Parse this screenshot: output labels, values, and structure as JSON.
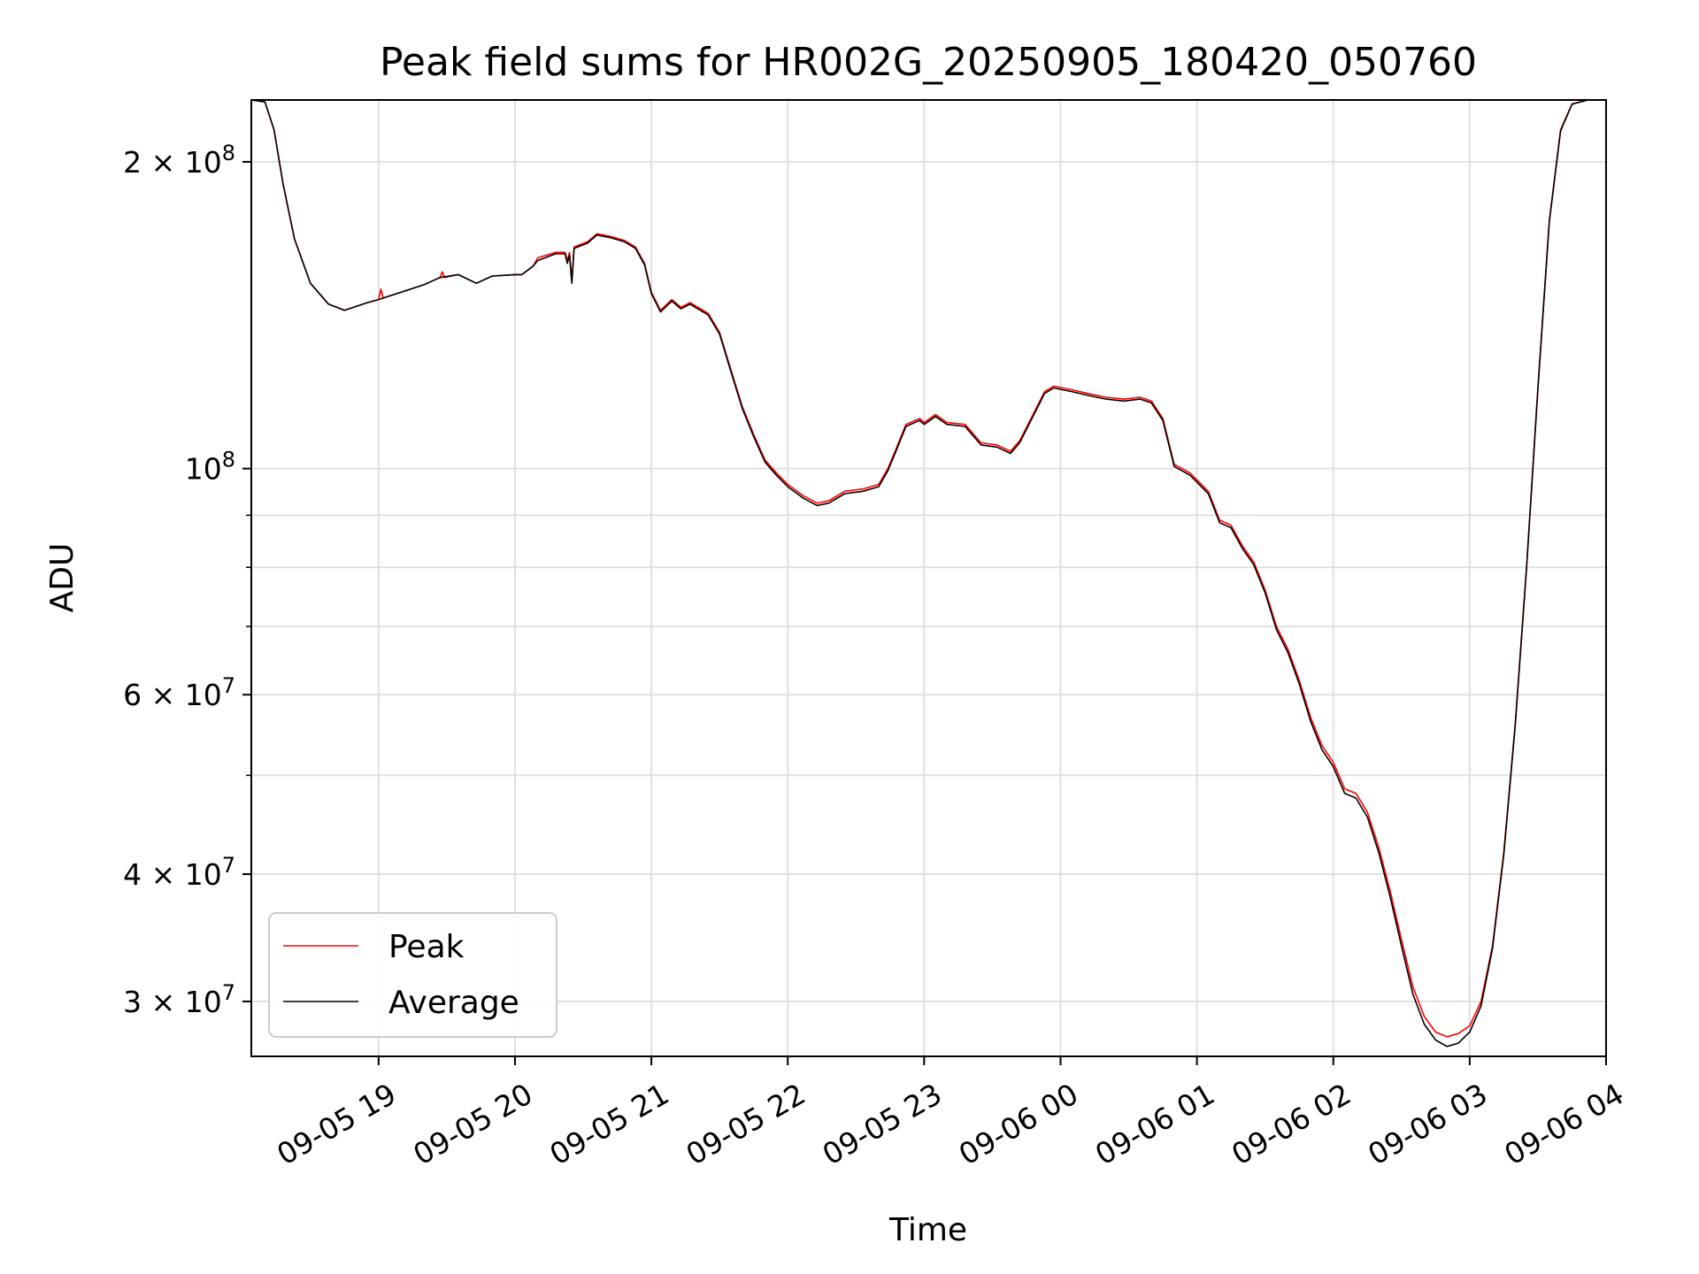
{
  "chart_data": {
    "type": "line",
    "title": "Peak field sums for HR002G_20250905_180420_050760",
    "xlabel": "Time",
    "ylabel": "ADU",
    "yscale": "log",
    "ylim": [
      26500000,
      230000000
    ],
    "xlim": [
      "2025-09-05 18:04",
      "2025-09-06 04:00"
    ],
    "grid": true,
    "legend_position": "lower-left",
    "x_ticks": [
      {
        "t": "2025-09-05 19:00",
        "label": "09-05 19"
      },
      {
        "t": "2025-09-05 20:00",
        "label": "09-05 20"
      },
      {
        "t": "2025-09-05 21:00",
        "label": "09-05 21"
      },
      {
        "t": "2025-09-05 22:00",
        "label": "09-05 22"
      },
      {
        "t": "2025-09-05 23:00",
        "label": "09-05 23"
      },
      {
        "t": "2025-09-06 00:00",
        "label": "09-06 00"
      },
      {
        "t": "2025-09-06 01:00",
        "label": "09-06 01"
      },
      {
        "t": "2025-09-06 02:00",
        "label": "09-06 02"
      },
      {
        "t": "2025-09-06 03:00",
        "label": "09-06 03"
      },
      {
        "t": "2025-09-06 04:00",
        "label": "09-06 04"
      }
    ],
    "y_major_ticks": [
      {
        "value": 30000000,
        "base": "3 × 10",
        "exp": "7"
      },
      {
        "value": 40000000,
        "base": "4 × 10",
        "exp": "7"
      },
      {
        "value": 60000000,
        "base": "6 × 10",
        "exp": "7"
      },
      {
        "value": 100000000,
        "base": "10",
        "exp": "8"
      },
      {
        "value": 200000000,
        "base": "2 × 10",
        "exp": "8"
      }
    ],
    "y_minor_ticks": [
      50000000,
      70000000,
      80000000,
      90000000
    ],
    "series": [
      {
        "name": "Peak",
        "color": "#ff0000",
        "points": [
          [
            "2025-09-05 18:04",
            230000000
          ],
          [
            "2025-09-05 18:10",
            229000000
          ],
          [
            "2025-09-05 18:14",
            215000000
          ],
          [
            "2025-09-05 18:18",
            190000000
          ],
          [
            "2025-09-05 18:23",
            168000000
          ],
          [
            "2025-09-05 18:30",
            152000000
          ],
          [
            "2025-09-05 18:38",
            145000000
          ],
          [
            "2025-09-05 18:45",
            143000000
          ],
          [
            "2025-09-05 18:55",
            145500000
          ],
          [
            "2025-09-05 19:00",
            146500000
          ],
          [
            "2025-09-05 19:01",
            150000000
          ],
          [
            "2025-09-05 19:02",
            147000000
          ],
          [
            "2025-09-05 19:06",
            148000000
          ],
          [
            "2025-09-05 19:10",
            149000000
          ],
          [
            "2025-09-05 19:20",
            151500000
          ],
          [
            "2025-09-05 19:27",
            154000000
          ],
          [
            "2025-09-05 19:28",
            156000000
          ],
          [
            "2025-09-05 19:29",
            154000000
          ],
          [
            "2025-09-05 19:35",
            155000000
          ],
          [
            "2025-09-05 19:43",
            152000000
          ],
          [
            "2025-09-05 19:50",
            154500000
          ],
          [
            "2025-09-05 20:00",
            155000000
          ],
          [
            "2025-09-05 20:03",
            155000000
          ],
          [
            "2025-09-05 20:08",
            158000000
          ],
          [
            "2025-09-05 20:10",
            161000000
          ],
          [
            "2025-09-05 20:18",
            163000000
          ],
          [
            "2025-09-05 20:22",
            163000000
          ],
          [
            "2025-09-05 20:23",
            160000000
          ],
          [
            "2025-09-05 20:24",
            163000000
          ],
          [
            "2025-09-05 20:25",
            153000000
          ],
          [
            "2025-09-05 20:26",
            165000000
          ],
          [
            "2025-09-05 20:32",
            167000000
          ],
          [
            "2025-09-05 20:36",
            170000000
          ],
          [
            "2025-09-05 20:42",
            169000000
          ],
          [
            "2025-09-05 20:48",
            167500000
          ],
          [
            "2025-09-05 20:53",
            165000000
          ],
          [
            "2025-09-05 20:57",
            159000000
          ],
          [
            "2025-09-05 21:00",
            149000000
          ],
          [
            "2025-09-05 21:04",
            143000000
          ],
          [
            "2025-09-05 21:09",
            146500000
          ],
          [
            "2025-09-05 21:13",
            144000000
          ],
          [
            "2025-09-05 21:17",
            145500000
          ],
          [
            "2025-09-05 21:25",
            142000000
          ],
          [
            "2025-09-05 21:30",
            136000000
          ],
          [
            "2025-09-05 21:35",
            125000000
          ],
          [
            "2025-09-05 21:40",
            115000000
          ],
          [
            "2025-09-05 21:45",
            108000000
          ],
          [
            "2025-09-05 21:50",
            102000000
          ],
          [
            "2025-09-05 21:55",
            99000000
          ],
          [
            "2025-09-05 22:00",
            96500000
          ],
          [
            "2025-09-05 22:07",
            94000000
          ],
          [
            "2025-09-05 22:13",
            92500000
          ],
          [
            "2025-09-05 22:18",
            93000000
          ],
          [
            "2025-09-05 22:25",
            95000000
          ],
          [
            "2025-09-05 22:33",
            95500000
          ],
          [
            "2025-09-05 22:40",
            96500000
          ],
          [
            "2025-09-05 22:44",
            100000000
          ],
          [
            "2025-09-05 22:48",
            105000000
          ],
          [
            "2025-09-05 22:52",
            110500000
          ],
          [
            "2025-09-05 22:58",
            112000000
          ],
          [
            "2025-09-05 23:00",
            111000000
          ],
          [
            "2025-09-05 23:05",
            113000000
          ],
          [
            "2025-09-05 23:10",
            111000000
          ],
          [
            "2025-09-05 23:18",
            110500000
          ],
          [
            "2025-09-05 23:25",
            106000000
          ],
          [
            "2025-09-05 23:32",
            105500000
          ],
          [
            "2025-09-05 23:38",
            104000000
          ],
          [
            "2025-09-05 23:42",
            106500000
          ],
          [
            "2025-09-05 23:47",
            112000000
          ],
          [
            "2025-09-05 23:53",
            119000000
          ],
          [
            "2025-09-05 23:57",
            120500000
          ],
          [
            "2025-09-06 00:05",
            119500000
          ],
          [
            "2025-09-06 00:12",
            118500000
          ],
          [
            "2025-09-06 00:20",
            117500000
          ],
          [
            "2025-09-06 00:28",
            117000000
          ],
          [
            "2025-09-06 00:35",
            117500000
          ],
          [
            "2025-09-06 00:40",
            116500000
          ],
          [
            "2025-09-06 00:45",
            112000000
          ],
          [
            "2025-09-06 00:50",
            101000000
          ],
          [
            "2025-09-06 00:57",
            99000000
          ],
          [
            "2025-09-06 01:05",
            95000000
          ],
          [
            "2025-09-06 01:10",
            89000000
          ],
          [
            "2025-09-06 01:15",
            88000000
          ],
          [
            "2025-09-06 01:20",
            84000000
          ],
          [
            "2025-09-06 01:25",
            81000000
          ],
          [
            "2025-09-06 01:30",
            76000000
          ],
          [
            "2025-09-06 01:35",
            70000000
          ],
          [
            "2025-09-06 01:40",
            66500000
          ],
          [
            "2025-09-06 01:45",
            62000000
          ],
          [
            "2025-09-06 01:50",
            57000000
          ],
          [
            "2025-09-06 01:55",
            53500000
          ],
          [
            "2025-09-06 02:00",
            51500000
          ],
          [
            "2025-09-06 02:05",
            48500000
          ],
          [
            "2025-09-06 02:10",
            48000000
          ],
          [
            "2025-09-06 02:15",
            46000000
          ],
          [
            "2025-09-06 02:20",
            42500000
          ],
          [
            "2025-09-06 02:25",
            38500000
          ],
          [
            "2025-09-06 02:30",
            34500000
          ],
          [
            "2025-09-06 02:35",
            31000000
          ],
          [
            "2025-09-06 02:40",
            29000000
          ],
          [
            "2025-09-06 02:45",
            28000000
          ],
          [
            "2025-09-06 02:50",
            27700000
          ],
          [
            "2025-09-06 02:55",
            27900000
          ],
          [
            "2025-09-06 03:00",
            28400000
          ],
          [
            "2025-09-06 03:05",
            30000000
          ],
          [
            "2025-09-06 03:10",
            34000000
          ],
          [
            "2025-09-06 03:15",
            42000000
          ],
          [
            "2025-09-06 03:20",
            56000000
          ],
          [
            "2025-09-06 03:25",
            80000000
          ],
          [
            "2025-09-06 03:30",
            120000000
          ],
          [
            "2025-09-06 03:35",
            175000000
          ],
          [
            "2025-09-06 03:40",
            215000000
          ],
          [
            "2025-09-06 03:45",
            228000000
          ],
          [
            "2025-09-06 03:52",
            230000000
          ],
          [
            "2025-09-06 04:00",
            230000000
          ]
        ]
      },
      {
        "name": "Average",
        "color": "#000000",
        "points": [
          [
            "2025-09-05 18:04",
            230000000
          ],
          [
            "2025-09-05 18:10",
            229000000
          ],
          [
            "2025-09-05 18:14",
            215000000
          ],
          [
            "2025-09-05 18:18",
            190000000
          ],
          [
            "2025-09-05 18:23",
            168000000
          ],
          [
            "2025-09-05 18:30",
            152000000
          ],
          [
            "2025-09-05 18:38",
            145000000
          ],
          [
            "2025-09-05 18:45",
            143000000
          ],
          [
            "2025-09-05 18:55",
            145500000
          ],
          [
            "2025-09-05 19:00",
            146500000
          ],
          [
            "2025-09-05 19:06",
            148000000
          ],
          [
            "2025-09-05 19:10",
            149000000
          ],
          [
            "2025-09-05 19:20",
            151500000
          ],
          [
            "2025-09-05 19:27",
            154000000
          ],
          [
            "2025-09-05 19:35",
            155000000
          ],
          [
            "2025-09-05 19:43",
            152000000
          ],
          [
            "2025-09-05 19:50",
            154500000
          ],
          [
            "2025-09-05 20:00",
            155000000
          ],
          [
            "2025-09-05 20:03",
            155000000
          ],
          [
            "2025-09-05 20:08",
            158000000
          ],
          [
            "2025-09-05 20:10",
            160000000
          ],
          [
            "2025-09-05 20:18",
            162500000
          ],
          [
            "2025-09-05 20:22",
            162500000
          ],
          [
            "2025-09-05 20:23",
            159000000
          ],
          [
            "2025-09-05 20:24",
            162000000
          ],
          [
            "2025-09-05 20:25",
            152000000
          ],
          [
            "2025-09-05 20:26",
            164500000
          ],
          [
            "2025-09-05 20:32",
            166500000
          ],
          [
            "2025-09-05 20:36",
            169500000
          ],
          [
            "2025-09-05 20:42",
            168500000
          ],
          [
            "2025-09-05 20:48",
            167000000
          ],
          [
            "2025-09-05 20:53",
            164500000
          ],
          [
            "2025-09-05 20:57",
            158500000
          ],
          [
            "2025-09-05 21:00",
            148500000
          ],
          [
            "2025-09-05 21:04",
            142500000
          ],
          [
            "2025-09-05 21:09",
            146000000
          ],
          [
            "2025-09-05 21:13",
            143500000
          ],
          [
            "2025-09-05 21:17",
            145000000
          ],
          [
            "2025-09-05 21:25",
            141500000
          ],
          [
            "2025-09-05 21:30",
            135500000
          ],
          [
            "2025-09-05 21:35",
            124500000
          ],
          [
            "2025-09-05 21:40",
            114500000
          ],
          [
            "2025-09-05 21:45",
            107500000
          ],
          [
            "2025-09-05 21:50",
            101500000
          ],
          [
            "2025-09-05 21:55",
            98500000
          ],
          [
            "2025-09-05 22:00",
            96000000
          ],
          [
            "2025-09-05 22:07",
            93500000
          ],
          [
            "2025-09-05 22:13",
            92000000
          ],
          [
            "2025-09-05 22:18",
            92500000
          ],
          [
            "2025-09-05 22:25",
            94500000
          ],
          [
            "2025-09-05 22:33",
            95000000
          ],
          [
            "2025-09-05 22:40",
            96000000
          ],
          [
            "2025-09-05 22:44",
            99500000
          ],
          [
            "2025-09-05 22:48",
            104500000
          ],
          [
            "2025-09-05 22:52",
            110000000
          ],
          [
            "2025-09-05 22:58",
            111500000
          ],
          [
            "2025-09-05 23:00",
            110500000
          ],
          [
            "2025-09-05 23:05",
            112500000
          ],
          [
            "2025-09-05 23:10",
            110500000
          ],
          [
            "2025-09-05 23:18",
            110000000
          ],
          [
            "2025-09-05 23:25",
            105500000
          ],
          [
            "2025-09-05 23:32",
            105000000
          ],
          [
            "2025-09-05 23:38",
            103500000
          ],
          [
            "2025-09-05 23:42",
            106000000
          ],
          [
            "2025-09-05 23:47",
            111500000
          ],
          [
            "2025-09-05 23:53",
            118500000
          ],
          [
            "2025-09-05 23:57",
            120000000
          ],
          [
            "2025-09-06 00:05",
            119000000
          ],
          [
            "2025-09-06 00:12",
            118000000
          ],
          [
            "2025-09-06 00:20",
            117000000
          ],
          [
            "2025-09-06 00:28",
            116500000
          ],
          [
            "2025-09-06 00:35",
            117000000
          ],
          [
            "2025-09-06 00:40",
            116000000
          ],
          [
            "2025-09-06 00:45",
            111500000
          ],
          [
            "2025-09-06 00:50",
            100500000
          ],
          [
            "2025-09-06 00:57",
            98500000
          ],
          [
            "2025-09-06 01:05",
            94500000
          ],
          [
            "2025-09-06 01:10",
            88500000
          ],
          [
            "2025-09-06 01:15",
            87500000
          ],
          [
            "2025-09-06 01:20",
            83500000
          ],
          [
            "2025-09-06 01:25",
            80500000
          ],
          [
            "2025-09-06 01:30",
            75500000
          ],
          [
            "2025-09-06 01:35",
            69500000
          ],
          [
            "2025-09-06 01:40",
            66000000
          ],
          [
            "2025-09-06 01:45",
            61500000
          ],
          [
            "2025-09-06 01:50",
            56500000
          ],
          [
            "2025-09-06 01:55",
            53000000
          ],
          [
            "2025-09-06 02:00",
            51000000
          ],
          [
            "2025-09-06 02:05",
            48000000
          ],
          [
            "2025-09-06 02:10",
            47500000
          ],
          [
            "2025-09-06 02:15",
            45500000
          ],
          [
            "2025-09-06 02:20",
            42000000
          ],
          [
            "2025-09-06 02:25",
            38000000
          ],
          [
            "2025-09-06 02:30",
            34000000
          ],
          [
            "2025-09-06 02:35",
            30500000
          ],
          [
            "2025-09-06 02:40",
            28500000
          ],
          [
            "2025-09-06 02:45",
            27500000
          ],
          [
            "2025-09-06 02:50",
            27100000
          ],
          [
            "2025-09-06 02:55",
            27300000
          ],
          [
            "2025-09-06 03:00",
            28000000
          ],
          [
            "2025-09-06 03:05",
            29700000
          ],
          [
            "2025-09-06 03:10",
            33800000
          ],
          [
            "2025-09-06 03:15",
            41800000
          ],
          [
            "2025-09-06 03:20",
            55800000
          ],
          [
            "2025-09-06 03:25",
            79800000
          ],
          [
            "2025-09-06 03:30",
            119500000
          ],
          [
            "2025-09-06 03:35",
            174500000
          ],
          [
            "2025-09-06 03:40",
            214500000
          ],
          [
            "2025-09-06 03:45",
            227800000
          ],
          [
            "2025-09-06 03:52",
            230000000
          ],
          [
            "2025-09-06 04:00",
            230000000
          ]
        ]
      }
    ]
  }
}
